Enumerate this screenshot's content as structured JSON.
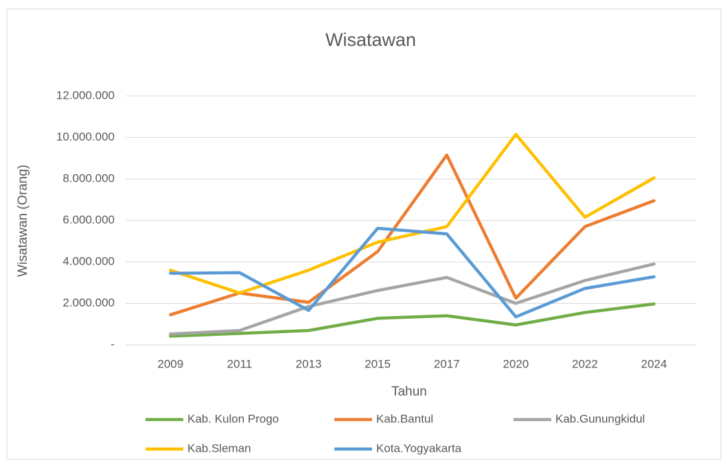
{
  "chart_data": {
    "type": "line",
    "title": "Wisatawan",
    "x_label": "Tahun",
    "y_label": "Wisatawan (Orang)",
    "categories": [
      "2009",
      "2011",
      "2013",
      "2015",
      "2017",
      "2020",
      "2022",
      "2024"
    ],
    "series": [
      {
        "name": "Kab. Kulon Progo",
        "color": "#70ad47",
        "values": [
          420000,
          550000,
          690000,
          1280000,
          1400000,
          960000,
          1560000,
          1970000
        ]
      },
      {
        "name": "Kab.Bantul",
        "color": "#ed7d31",
        "values": [
          1450000,
          2500000,
          2050000,
          4500000,
          9150000,
          2250000,
          5700000,
          6950000
        ]
      },
      {
        "name": "Kab.Gunungkidul",
        "color": "#a5a5a5",
        "values": [
          520000,
          690000,
          1850000,
          2620000,
          3250000,
          2000000,
          3100000,
          3900000
        ]
      },
      {
        "name": "Kab.Sleman",
        "color": "#ffc000",
        "values": [
          3600000,
          2500000,
          3600000,
          4950000,
          5700000,
          10150000,
          6150000,
          8050000
        ]
      },
      {
        "name": "Kota.Yogyakarta",
        "color": "#5b9bd5",
        "values": [
          3450000,
          3480000,
          1660000,
          5620000,
          5350000,
          1350000,
          2720000,
          3280000
        ]
      }
    ],
    "ylim": [
      0,
      12000000
    ],
    "yticks": [
      {
        "value": 0,
        "label": "-"
      },
      {
        "value": 2000000,
        "label": "2.000.000"
      },
      {
        "value": 4000000,
        "label": "4.000.000"
      },
      {
        "value": 6000000,
        "label": "6.000.000"
      },
      {
        "value": 8000000,
        "label": "8.000.000"
      },
      {
        "value": 10000000,
        "label": "10.000.000"
      },
      {
        "value": 12000000,
        "label": "12.000.000"
      }
    ],
    "grid": true,
    "legend": "bottom"
  }
}
